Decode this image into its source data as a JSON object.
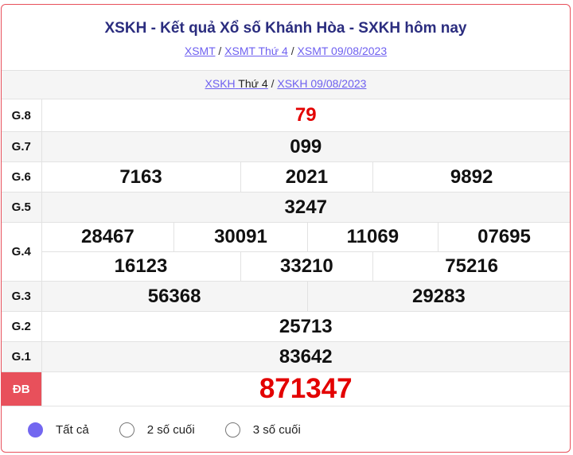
{
  "title": "XSKH - Kết quả Xổ số Khánh Hòa - SXKH hôm nay",
  "breadcrumb": [
    "XSMT",
    "XSMT Thứ 4",
    "XSMT 09/08/2023"
  ],
  "sub_breadcrumb": {
    "link1": "XSKH",
    "text1": "Thứ 4",
    "link2": "XSKH 09/08/2023"
  },
  "separator": "/",
  "prizes": {
    "g8": {
      "label": "G.8",
      "values": [
        "79"
      ]
    },
    "g7": {
      "label": "G.7",
      "values": [
        "099"
      ]
    },
    "g6": {
      "label": "G.6",
      "values": [
        "7163",
        "2021",
        "9892"
      ]
    },
    "g5": {
      "label": "G.5",
      "values": [
        "3247"
      ]
    },
    "g4": {
      "label": "G.4",
      "values": [
        "28467",
        "30091",
        "11069",
        "07695",
        "16123",
        "33210",
        "75216"
      ]
    },
    "g3": {
      "label": "G.3",
      "values": [
        "56368",
        "29283"
      ]
    },
    "g2": {
      "label": "G.2",
      "values": [
        "25713"
      ]
    },
    "g1": {
      "label": "G.1",
      "values": [
        "83642"
      ]
    },
    "db": {
      "label": "ĐB",
      "values": [
        "871347"
      ]
    }
  },
  "filter": {
    "options": [
      "Tất cả",
      "2 số cuối",
      "3 số cuối"
    ],
    "selected": "Tất cả"
  },
  "colors": {
    "accent": "#e8505b",
    "title": "#2b2d7f",
    "link": "#6e60f0",
    "highlight": "#e30000"
  }
}
